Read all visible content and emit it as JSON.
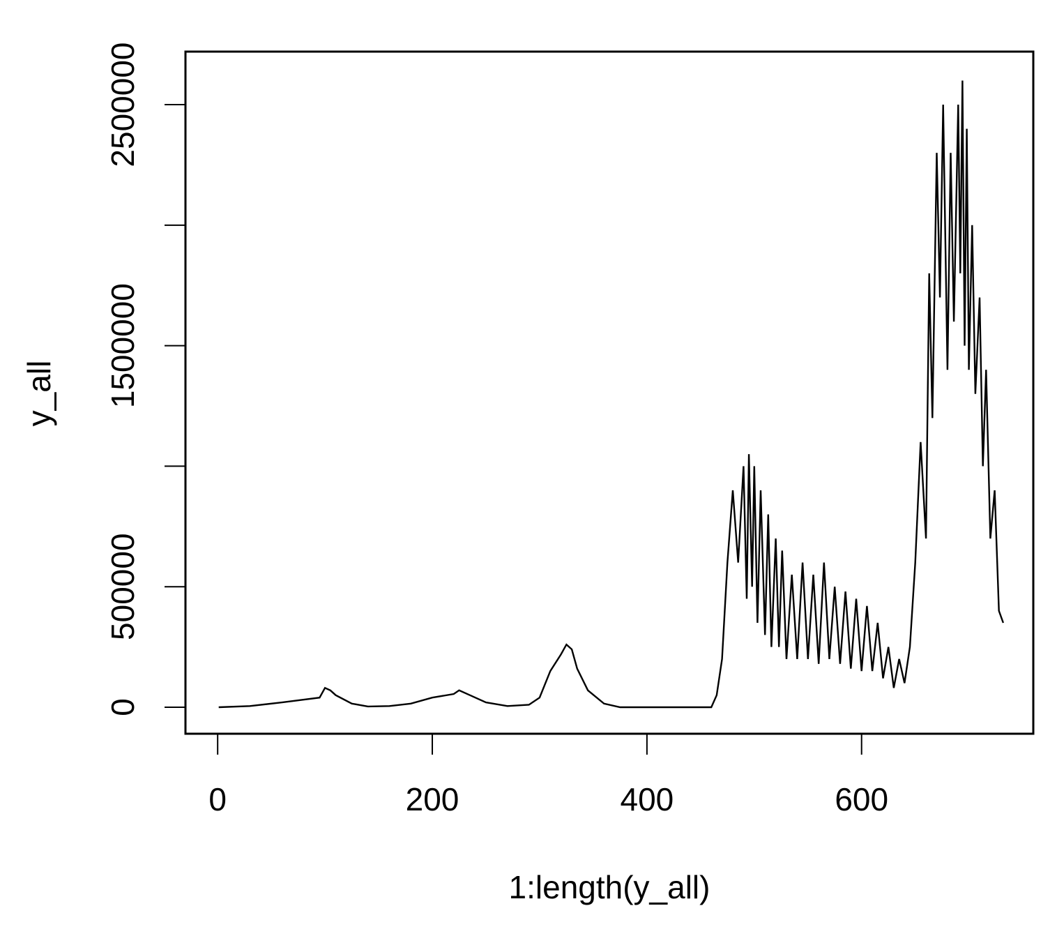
{
  "chart_data": {
    "type": "line",
    "title": "",
    "xlabel": "1:length(y_all)",
    "ylabel": "y_all",
    "xlim": [
      -30,
      760
    ],
    "ylim": [
      -110000,
      2720000
    ],
    "x_ticks": [
      0,
      200,
      400,
      600
    ],
    "x_tick_labels": [
      "0",
      "200",
      "400",
      "600"
    ],
    "y_ticks": [
      0,
      500000,
      1000000,
      1500000,
      2000000,
      2500000
    ],
    "y_tick_labels": [
      "0",
      "500000",
      "",
      "1500000",
      "",
      "2500000"
    ],
    "grid": false,
    "line_color": "#000000",
    "series": [
      {
        "x": [
          1,
          30,
          60,
          95,
          100,
          105,
          110,
          125,
          140,
          160,
          180,
          200,
          220,
          225,
          235,
          250,
          270,
          290,
          300,
          310,
          320,
          325,
          330,
          335,
          345,
          360,
          375,
          400,
          430,
          460,
          465,
          470,
          475,
          480,
          485,
          490,
          493,
          495,
          498,
          500,
          503,
          506,
          510,
          513,
          516,
          520,
          523,
          526,
          530,
          535,
          540,
          545,
          550,
          555,
          560,
          565,
          570,
          575,
          580,
          585,
          590,
          595,
          600,
          605,
          610,
          615,
          620,
          625,
          630,
          635,
          640,
          645,
          650,
          655,
          660,
          663,
          666,
          670,
          673,
          676,
          680,
          683,
          686,
          690,
          692,
          694,
          696,
          698,
          700,
          703,
          706,
          710,
          713,
          716,
          720,
          724,
          728,
          732
        ],
        "y": [
          0,
          5000,
          20000,
          40000,
          80000,
          70000,
          50000,
          15000,
          3000,
          5000,
          15000,
          40000,
          55000,
          70000,
          50000,
          20000,
          5000,
          10000,
          40000,
          150000,
          220000,
          260000,
          240000,
          160000,
          70000,
          15000,
          0,
          0,
          0,
          0,
          50000,
          200000,
          600000,
          900000,
          600000,
          1000000,
          450000,
          1050000,
          500000,
          1000000,
          350000,
          900000,
          300000,
          800000,
          250000,
          700000,
          250000,
          650000,
          200000,
          550000,
          200000,
          600000,
          200000,
          550000,
          180000,
          600000,
          200000,
          500000,
          180000,
          480000,
          160000,
          450000,
          150000,
          420000,
          150000,
          350000,
          120000,
          250000,
          80000,
          200000,
          100000,
          250000,
          600000,
          1100000,
          700000,
          1800000,
          1200000,
          2300000,
          1700000,
          2500000,
          1400000,
          2300000,
          1600000,
          2500000,
          1800000,
          2600000,
          1500000,
          2400000,
          1400000,
          2000000,
          1300000,
          1700000,
          1000000,
          1400000,
          700000,
          900000,
          400000,
          350000
        ]
      }
    ]
  }
}
